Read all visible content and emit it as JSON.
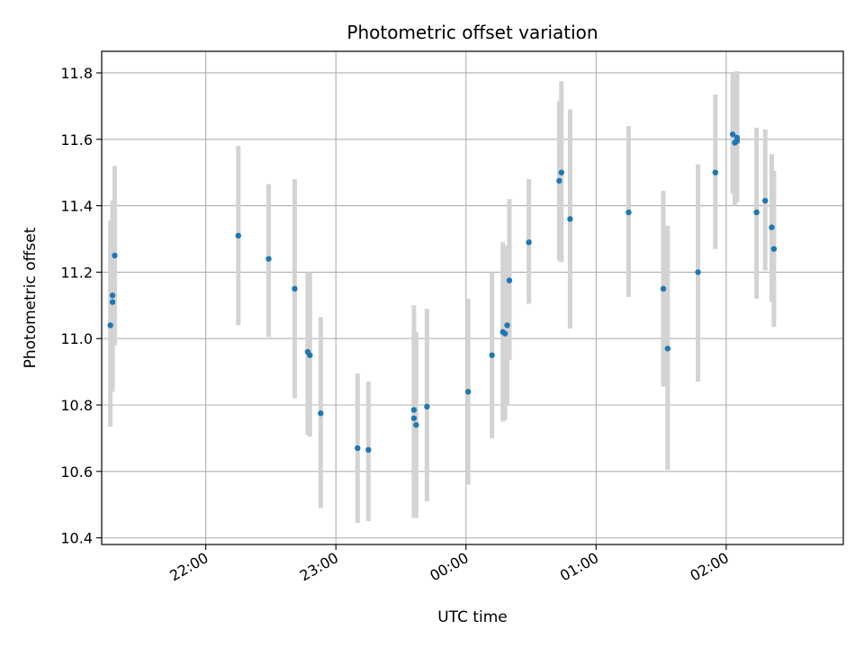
{
  "chart_data": {
    "type": "scatter",
    "title": "Photometric offset variation",
    "xlabel": "UTC time",
    "ylabel": "Photometric offset",
    "x_unit": "UTC",
    "xlim": [
      "21:12",
      "02:54"
    ],
    "ylim": [
      10.38,
      11.865
    ],
    "x_ticks": [
      "22:00",
      "23:00",
      "00:00",
      "01:00",
      "02:00"
    ],
    "y_ticks": [
      10.4,
      10.6,
      10.8,
      11.0,
      11.2,
      11.4,
      11.6,
      11.8
    ],
    "y_tick_labels": [
      "10.4",
      "10.6",
      "10.8",
      "11.0",
      "11.2",
      "11.4",
      "11.6",
      "11.8"
    ],
    "grid": true,
    "legend": false,
    "colors": {
      "point": "#1f77b4",
      "errorbar": "#d3d3d3",
      "grid": "#b0b0b0"
    },
    "series": [
      {
        "x": [
          "21:16",
          "21:17",
          "21:17",
          "21:18",
          "22:15",
          "22:29",
          "22:41",
          "22:47",
          "22:48",
          "22:53",
          "23:10",
          "23:15",
          "23:36",
          "23:36",
          "23:37",
          "23:42",
          "00:01",
          "00:12",
          "00:17",
          "00:18",
          "00:19",
          "00:20",
          "00:29",
          "00:43",
          "00:44",
          "00:48",
          "01:15",
          "01:31",
          "01:33",
          "01:47",
          "01:55",
          "02:03",
          "02:04",
          "02:04",
          "02:05",
          "02:05",
          "02:14",
          "02:18",
          "02:21",
          "02:22"
        ],
        "y": [
          11.04,
          11.13,
          11.11,
          11.25,
          11.31,
          11.24,
          11.15,
          10.96,
          10.95,
          10.775,
          10.67,
          10.665,
          10.785,
          10.76,
          10.74,
          10.795,
          10.84,
          10.95,
          11.02,
          11.015,
          11.04,
          11.175,
          11.29,
          11.475,
          11.5,
          11.36,
          11.38,
          11.15,
          10.97,
          11.2,
          11.5,
          11.615,
          11.59,
          11.59,
          11.595,
          11.605,
          11.38,
          11.415,
          11.335,
          11.27
        ],
        "yerr_low": [
          10.735,
          10.84,
          10.845,
          10.98,
          11.04,
          11.005,
          10.82,
          10.71,
          10.705,
          10.49,
          10.445,
          10.45,
          10.465,
          10.46,
          10.46,
          10.51,
          10.56,
          10.7,
          10.75,
          10.755,
          10.8,
          10.935,
          11.105,
          11.235,
          11.23,
          11.03,
          11.125,
          10.855,
          10.605,
          10.87,
          11.27,
          11.435,
          11.4,
          11.4,
          11.41,
          11.41,
          11.12,
          11.205,
          11.11,
          11.035
        ],
        "yerr_high": [
          11.355,
          11.415,
          11.415,
          11.52,
          11.58,
          11.465,
          11.48,
          11.2,
          11.2,
          11.065,
          10.895,
          10.87,
          11.1,
          11.025,
          11.02,
          11.09,
          11.12,
          11.2,
          11.29,
          11.275,
          11.28,
          11.42,
          11.48,
          11.715,
          11.775,
          11.69,
          11.64,
          11.445,
          11.34,
          11.525,
          11.735,
          11.8,
          11.8,
          11.8,
          11.8,
          11.805,
          11.635,
          11.63,
          11.555,
          11.505
        ]
      }
    ]
  }
}
